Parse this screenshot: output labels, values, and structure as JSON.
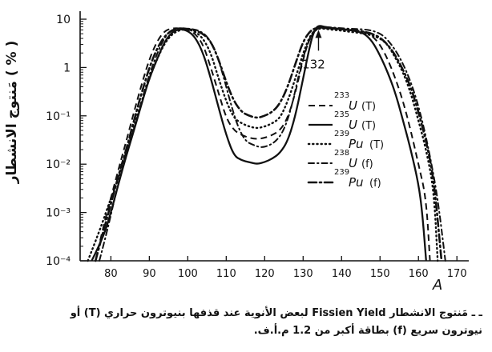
{
  "chart_data": {
    "type": "line",
    "title": "",
    "xlabel": "A",
    "ylabel": "مَنتوج الانشطار ( % )",
    "yscale": "log",
    "xlim": [
      72,
      171
    ],
    "ylim": [
      0.0001,
      10
    ],
    "x_ticks": [
      80,
      90,
      100,
      110,
      120,
      130,
      140,
      150,
      160,
      170
    ],
    "y_ticks": [
      {
        "value": 10,
        "label": "10"
      },
      {
        "value": 1,
        "label": "1"
      },
      {
        "value": 0.1,
        "label": "10⁻¹"
      },
      {
        "value": 0.01,
        "label": "10⁻²"
      },
      {
        "value": 0.001,
        "label": "10⁻³"
      },
      {
        "value": 0.0001,
        "label": "10⁻⁴"
      }
    ],
    "grid": false,
    "legend_position": "right",
    "annotations": [
      {
        "text": "132",
        "x": 134,
        "y": 7.0
      }
    ],
    "series": [
      {
        "name": "²³⁵U (T)",
        "style": "solid",
        "points": [
          [
            75,
            0.0001
          ],
          [
            78,
            0.0003
          ],
          [
            80,
            0.001
          ],
          [
            82,
            0.004
          ],
          [
            84,
            0.015
          ],
          [
            86,
            0.05
          ],
          [
            88,
            0.18
          ],
          [
            90,
            0.6
          ],
          [
            92,
            1.5
          ],
          [
            94,
            3.5
          ],
          [
            96,
            5.5
          ],
          [
            98,
            6.3
          ],
          [
            100,
            5.8
          ],
          [
            102,
            4.2
          ],
          [
            104,
            2.0
          ],
          [
            106,
            0.6
          ],
          [
            108,
            0.15
          ],
          [
            110,
            0.04
          ],
          [
            112,
            0.015
          ],
          [
            114,
            0.012
          ],
          [
            116,
            0.011
          ],
          [
            118,
            0.01
          ],
          [
            120,
            0.011
          ],
          [
            122,
            0.013
          ],
          [
            124,
            0.017
          ],
          [
            126,
            0.03
          ],
          [
            128,
            0.1
          ],
          [
            130,
            0.6
          ],
          [
            132,
            3.5
          ],
          [
            133,
            6.0
          ],
          [
            134,
            7.5
          ],
          [
            136,
            6.8
          ],
          [
            138,
            6.5
          ],
          [
            140,
            6.2
          ],
          [
            142,
            6.0
          ],
          [
            144,
            5.6
          ],
          [
            146,
            5.0
          ],
          [
            148,
            3.5
          ],
          [
            150,
            1.8
          ],
          [
            152,
            0.8
          ],
          [
            154,
            0.3
          ],
          [
            156,
            0.08
          ],
          [
            158,
            0.02
          ],
          [
            160,
            0.004
          ],
          [
            161,
            0.001
          ],
          [
            162,
            0.0001
          ]
        ]
      },
      {
        "name": "²³³U (T)",
        "style": "dashed",
        "points": [
          [
            76,
            0.0001
          ],
          [
            78,
            0.0005
          ],
          [
            80,
            0.002
          ],
          [
            82,
            0.008
          ],
          [
            84,
            0.03
          ],
          [
            86,
            0.12
          ],
          [
            88,
            0.45
          ],
          [
            90,
            1.5
          ],
          [
            92,
            3.5
          ],
          [
            94,
            5.8
          ],
          [
            96,
            6.5
          ],
          [
            98,
            6.5
          ],
          [
            100,
            6.0
          ],
          [
            102,
            5.0
          ],
          [
            104,
            3.0
          ],
          [
            106,
            1.0
          ],
          [
            108,
            0.3
          ],
          [
            110,
            0.09
          ],
          [
            112,
            0.05
          ],
          [
            114,
            0.04
          ],
          [
            116,
            0.035
          ],
          [
            118,
            0.033
          ],
          [
            120,
            0.035
          ],
          [
            122,
            0.04
          ],
          [
            124,
            0.05
          ],
          [
            126,
            0.09
          ],
          [
            128,
            0.3
          ],
          [
            130,
            1.5
          ],
          [
            132,
            5.0
          ],
          [
            134,
            6.8
          ],
          [
            136,
            6.5
          ],
          [
            138,
            6.3
          ],
          [
            140,
            6.2
          ],
          [
            142,
            6.0
          ],
          [
            144,
            5.8
          ],
          [
            146,
            5.5
          ],
          [
            148,
            4.5
          ],
          [
            150,
            3.0
          ],
          [
            152,
            1.5
          ],
          [
            154,
            0.6
          ],
          [
            156,
            0.2
          ],
          [
            158,
            0.05
          ],
          [
            160,
            0.01
          ],
          [
            162,
            0.002
          ],
          [
            163,
            0.0001
          ]
        ]
      },
      {
        "name": "²³⁹Pu (T)",
        "style": "dotted",
        "points": [
          [
            74,
            0.0001
          ],
          [
            77,
            0.0004
          ],
          [
            80,
            0.002
          ],
          [
            82,
            0.005
          ],
          [
            84,
            0.018
          ],
          [
            86,
            0.06
          ],
          [
            88,
            0.2
          ],
          [
            90,
            0.6
          ],
          [
            92,
            1.5
          ],
          [
            94,
            3.2
          ],
          [
            96,
            5.0
          ],
          [
            98,
            6.0
          ],
          [
            100,
            6.2
          ],
          [
            102,
            5.5
          ],
          [
            104,
            4.0
          ],
          [
            106,
            2.0
          ],
          [
            108,
            0.6
          ],
          [
            110,
            0.2
          ],
          [
            112,
            0.09
          ],
          [
            114,
            0.07
          ],
          [
            116,
            0.06
          ],
          [
            118,
            0.055
          ],
          [
            120,
            0.06
          ],
          [
            122,
            0.07
          ],
          [
            124,
            0.09
          ],
          [
            126,
            0.2
          ],
          [
            128,
            0.6
          ],
          [
            130,
            2.0
          ],
          [
            132,
            5.0
          ],
          [
            134,
            6.5
          ],
          [
            136,
            6.3
          ],
          [
            138,
            6.0
          ],
          [
            140,
            5.8
          ],
          [
            142,
            5.5
          ],
          [
            144,
            5.3
          ],
          [
            146,
            5.0
          ],
          [
            148,
            4.6
          ],
          [
            150,
            4.0
          ],
          [
            152,
            3.0
          ],
          [
            154,
            1.6
          ],
          [
            156,
            0.8
          ],
          [
            158,
            0.3
          ],
          [
            160,
            0.08
          ],
          [
            162,
            0.02
          ],
          [
            164,
            0.003
          ],
          [
            165,
            0.0001
          ]
        ]
      },
      {
        "name": "²³⁸U (f)",
        "style": "dash-dot",
        "points": [
          [
            77,
            0.0001
          ],
          [
            79,
            0.0004
          ],
          [
            81,
            0.002
          ],
          [
            83,
            0.008
          ],
          [
            85,
            0.03
          ],
          [
            87,
            0.1
          ],
          [
            89,
            0.4
          ],
          [
            91,
            1.2
          ],
          [
            93,
            3.0
          ],
          [
            95,
            5.5
          ],
          [
            97,
            6.5
          ],
          [
            99,
            6.5
          ],
          [
            101,
            6.3
          ],
          [
            103,
            5.8
          ],
          [
            105,
            4.5
          ],
          [
            107,
            2.5
          ],
          [
            109,
            0.8
          ],
          [
            111,
            0.2
          ],
          [
            113,
            0.06
          ],
          [
            115,
            0.03
          ],
          [
            117,
            0.025
          ],
          [
            119,
            0.022
          ],
          [
            121,
            0.024
          ],
          [
            123,
            0.03
          ],
          [
            125,
            0.05
          ],
          [
            127,
            0.15
          ],
          [
            129,
            0.8
          ],
          [
            131,
            3.0
          ],
          [
            133,
            6.0
          ],
          [
            135,
            7.0
          ],
          [
            137,
            6.8
          ],
          [
            139,
            6.6
          ],
          [
            141,
            6.4
          ],
          [
            143,
            6.3
          ],
          [
            145,
            6.2
          ],
          [
            147,
            6.0
          ],
          [
            149,
            5.5
          ],
          [
            151,
            4.5
          ],
          [
            153,
            3.0
          ],
          [
            155,
            1.7
          ],
          [
            157,
            0.8
          ],
          [
            159,
            0.3
          ],
          [
            161,
            0.08
          ],
          [
            163,
            0.015
          ],
          [
            165,
            0.002
          ],
          [
            167,
            0.0001
          ]
        ]
      },
      {
        "name": "²³⁹Pu (f)",
        "style": "dash-dot-bold",
        "points": [
          [
            76,
            0.0001
          ],
          [
            78,
            0.0004
          ],
          [
            80,
            0.0015
          ],
          [
            82,
            0.006
          ],
          [
            84,
            0.02
          ],
          [
            86,
            0.08
          ],
          [
            88,
            0.3
          ],
          [
            90,
            1.0
          ],
          [
            92,
            2.5
          ],
          [
            94,
            4.5
          ],
          [
            96,
            6.0
          ],
          [
            98,
            6.5
          ],
          [
            100,
            6.3
          ],
          [
            102,
            5.8
          ],
          [
            104,
            5.0
          ],
          [
            106,
            3.5
          ],
          [
            108,
            1.5
          ],
          [
            110,
            0.5
          ],
          [
            112,
            0.2
          ],
          [
            114,
            0.12
          ],
          [
            116,
            0.1
          ],
          [
            118,
            0.09
          ],
          [
            120,
            0.1
          ],
          [
            122,
            0.12
          ],
          [
            124,
            0.18
          ],
          [
            126,
            0.4
          ],
          [
            128,
            1.2
          ],
          [
            130,
            3.5
          ],
          [
            132,
            6.0
          ],
          [
            134,
            6.8
          ],
          [
            136,
            6.6
          ],
          [
            138,
            6.4
          ],
          [
            140,
            6.2
          ],
          [
            142,
            6.0
          ],
          [
            144,
            5.8
          ],
          [
            146,
            5.5
          ],
          [
            148,
            5.0
          ],
          [
            150,
            4.2
          ],
          [
            152,
            3.0
          ],
          [
            154,
            1.8
          ],
          [
            156,
            0.9
          ],
          [
            158,
            0.4
          ],
          [
            160,
            0.12
          ],
          [
            162,
            0.03
          ],
          [
            164,
            0.005
          ],
          [
            166,
            0.0001
          ]
        ]
      }
    ]
  },
  "legend": [
    {
      "mass": "233",
      "element": "U",
      "mode": "(T)",
      "style": "dashed"
    },
    {
      "mass": "235",
      "element": "U",
      "mode": "(T)",
      "style": "solid"
    },
    {
      "mass": "239",
      "element": "Pu",
      "mode": "(T)",
      "style": "dotted"
    },
    {
      "mass": "238",
      "element": "U",
      "mode": "(f)",
      "style": "dash-dot"
    },
    {
      "mass": "239",
      "element": "Pu",
      "mode": "(f)",
      "style": "dash-dot-bold"
    }
  ],
  "caption": {
    "line1": "ـ ـ مَنتوج الانشطار Fissien Yield لبعض الأنوية عند قذفها بنيوترون حراري (T) أو",
    "line2": "نيوترون سريع (f) بطاقة أكبر من 1.2 م.أ.ف."
  }
}
